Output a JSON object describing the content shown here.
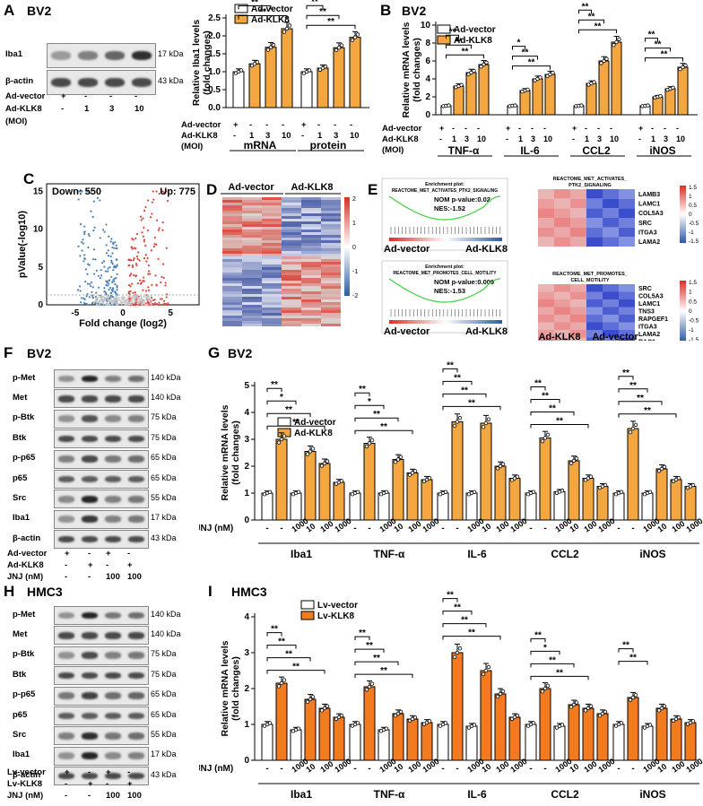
{
  "panels": {
    "A": "A",
    "B": "B",
    "C": "C",
    "D": "D",
    "E": "E",
    "F": "F",
    "G": "G",
    "H": "H",
    "I": "I"
  },
  "cell_lines": {
    "bv2": "BV2",
    "hmc3": "HMC3"
  },
  "panel_a": {
    "blots": [
      {
        "label": "Iba1",
        "kda": "17 kDa"
      },
      {
        "label": "β-actin",
        "kda": "43 kDa"
      }
    ],
    "rows": [
      {
        "label": "Ad-vector",
        "vals": [
          "+",
          "-",
          "-",
          "-"
        ]
      },
      {
        "label": "Ad-KLK8",
        "vals": [
          "-",
          "1",
          "3",
          "10"
        ]
      },
      {
        "label": "(MOI)",
        "vals": [
          "",
          "",
          "",
          ""
        ]
      }
    ]
  },
  "panel_b": {
    "rows": [
      {
        "label": "Ad-vector",
        "vals": [
          "+",
          "-",
          "-",
          "-"
        ]
      },
      {
        "label": "Ad-KLK8",
        "vals": [
          "-",
          "1",
          "3",
          "10"
        ]
      },
      {
        "label": "(MOI)",
        "vals": [
          "",
          "",
          "",
          ""
        ]
      }
    ]
  },
  "panel_c": {
    "down": "Down: 550",
    "up": "Up: 775"
  },
  "panel_d": {
    "groups": [
      "Ad-vector",
      "Ad-KLK8"
    ],
    "scale": [
      "2",
      "1",
      "0",
      "-1",
      "-2"
    ]
  },
  "panel_e": {
    "gsea": [
      {
        "title": "Enrichment plot:",
        "sub": "REACTOME_MET_ACTIVATES_PTK2_SIGNALING",
        "p": "NOM p-value:0.02",
        "nes": "NES:-1.52"
      },
      {
        "title": "Enrichment plot:",
        "sub": "REACTOME_MET_PROMOTES_CELL_MOTILITY",
        "p": "NOM p-value:0.009",
        "nes": "NES:-1.53"
      }
    ],
    "gsea_axis": [
      "Ad-vector",
      "Ad-KLK8"
    ],
    "heat1_title": [
      "REACTOME_MET_ACTIVATES_",
      "PTK2_SIGNALING"
    ],
    "heat1_genes": [
      "LAMB3",
      "LAMC1",
      "COL5A3",
      "SRC",
      "ITGA3",
      "LAMA2"
    ],
    "heat2_title": [
      "REACTOME_MET_PROMOTES_",
      "CELL_MOTILITY"
    ],
    "heat2_genes": [
      "SRC",
      "COL5A3",
      "LAMC1",
      "TNS3",
      "RAPGEF1",
      "ITGA3",
      "LAMA2",
      "RAC1"
    ],
    "heat_groups": [
      "Ad-KLK8",
      "Ad-vector"
    ],
    "scale": [
      "1.5",
      "1",
      "0.5",
      "0",
      "-0.5",
      "-1",
      "-1.5"
    ]
  },
  "panel_f": {
    "blots": [
      {
        "label": "p-Met",
        "kda": "140 kDa"
      },
      {
        "label": "Met",
        "kda": "140 kDa"
      },
      {
        "label": "p-Btk",
        "kda": "75 kDa"
      },
      {
        "label": "Btk",
        "kda": "75 kDa"
      },
      {
        "label": "p-p65",
        "kda": "65 kDa"
      },
      {
        "label": "p65",
        "kda": "65 kDa"
      },
      {
        "label": "Src",
        "kda": "55 kDa"
      },
      {
        "label": "Iba1",
        "kda": "17 kDa"
      },
      {
        "label": "β-actin",
        "kda": "43 kDa"
      }
    ],
    "rows": [
      {
        "label": "Ad-vector",
        "vals": [
          "+",
          "-",
          "+",
          "-"
        ]
      },
      {
        "label": "Ad-KLK8",
        "vals": [
          "-",
          "+",
          "-",
          "+"
        ]
      },
      {
        "label": "JNJ (nM)",
        "vals": [
          "-",
          "-",
          "100",
          "100"
        ]
      }
    ]
  },
  "panel_h": {
    "blots": [
      {
        "label": "p-Met",
        "kda": "140 kDa"
      },
      {
        "label": "Met",
        "kda": "140 kDa"
      },
      {
        "label": "p-Btk",
        "kda": "75 kDa"
      },
      {
        "label": "Btk",
        "kda": "75 kDa"
      },
      {
        "label": "p-p65",
        "kda": "65 kDa"
      },
      {
        "label": "p65",
        "kda": "65 kDa"
      },
      {
        "label": "Src",
        "kda": "55 kDa"
      },
      {
        "label": "Iba1",
        "kda": "17 kDa"
      },
      {
        "label": "β-actin",
        "kda": "43 kDa"
      }
    ],
    "rows": [
      {
        "label": "Lv-vector",
        "vals": [
          "+",
          "-",
          "+",
          "-"
        ]
      },
      {
        "label": "Lv-KLK8",
        "vals": [
          "-",
          "+",
          "-",
          "+"
        ]
      },
      {
        "label": "JNJ (nM)",
        "vals": [
          "-",
          "-",
          "100",
          "100"
        ]
      }
    ]
  },
  "chart_data": [
    {
      "id": "A-bar",
      "type": "bar",
      "ylabel": "Relative Iba1 levels (fold changes)",
      "ylim": [
        0,
        2.5
      ],
      "yticks": [
        "0.0",
        "0.5",
        "1.0",
        "1.5",
        "2.0",
        "2.5"
      ],
      "legend": [
        "Ad-vector",
        "Ad-KLK8"
      ],
      "groups": [
        "mRNA",
        "protein"
      ],
      "series": [
        {
          "name": "mRNA",
          "values": [
            1.0,
            1.22,
            1.68,
            2.2
          ]
        },
        {
          "name": "protein",
          "values": [
            1.0,
            1.1,
            1.67,
            1.96
          ]
        }
      ],
      "sig": [
        "*",
        "**",
        "**",
        "**",
        "**",
        "**"
      ]
    },
    {
      "id": "B-bar",
      "type": "bar",
      "ylabel": "Relative mRNA levels (fold changes)",
      "ylim": [
        0,
        10
      ],
      "yticks": [
        "0",
        "2",
        "4",
        "6",
        "8",
        "10"
      ],
      "legend": [
        "Ad-vector",
        "Ad-KLK8"
      ],
      "groups": [
        "TNF-α",
        "IL-6",
        "CCL2",
        "iNOS"
      ],
      "series": [
        {
          "name": "TNF-α",
          "values": [
            1.0,
            3.2,
            4.7,
            5.6
          ]
        },
        {
          "name": "IL-6",
          "values": [
            1.0,
            2.7,
            4.0,
            4.5
          ]
        },
        {
          "name": "CCL2",
          "values": [
            1.0,
            3.5,
            6.0,
            8.1
          ]
        },
        {
          "name": "iNOS",
          "values": [
            1.0,
            2.0,
            2.9,
            5.3
          ]
        }
      ],
      "sig": [
        "**",
        "**",
        "**",
        "*",
        "**",
        "**",
        "**",
        "**",
        "**",
        "**",
        "**",
        "**"
      ]
    },
    {
      "id": "C-volcano",
      "type": "scatter",
      "xlabel": "Fold change (log2)",
      "ylabel": "pValue(-log10)",
      "xticks": [
        "-5",
        "0",
        "5"
      ],
      "yticks": [
        "0",
        "5",
        "10",
        "15"
      ],
      "xlim": [
        -8,
        8
      ],
      "ylim": [
        0,
        16
      ]
    },
    {
      "id": "G-bar",
      "type": "bar",
      "ylabel": "Relative mRNA levels (fold changes)",
      "ylim": [
        0,
        5
      ],
      "yticks": [
        "0",
        "1",
        "2",
        "3",
        "4",
        "5"
      ],
      "legend": [
        "Ad-vector",
        "Ad-KLK8"
      ],
      "groups": [
        "Iba1",
        "TNF-α",
        "IL-6",
        "CCL2",
        "iNOS"
      ],
      "xcond_label": "JNJ (nM)",
      "xcond": [
        "-",
        "-",
        "1000",
        "10",
        "100",
        "1000"
      ],
      "series": [
        {
          "name": "Iba1",
          "values": [
            1.0,
            3.0,
            1.0,
            2.55,
            2.1,
            1.4
          ]
        },
        {
          "name": "TNF-α",
          "values": [
            1.0,
            2.85,
            1.0,
            2.25,
            1.75,
            1.5
          ]
        },
        {
          "name": "IL-6",
          "values": [
            1.0,
            3.65,
            1.0,
            3.6,
            2.0,
            1.55
          ]
        },
        {
          "name": "CCL2",
          "values": [
            1.0,
            3.05,
            1.05,
            2.2,
            1.55,
            1.25
          ]
        },
        {
          "name": "iNOS",
          "values": [
            1.0,
            3.4,
            1.0,
            1.9,
            1.5,
            1.25
          ]
        }
      ],
      "sig": [
        "**",
        "*",
        "**",
        "**",
        "**",
        "*",
        "**",
        "**",
        "**",
        "**",
        "**",
        "**",
        "**",
        "**",
        "**",
        "**",
        "**",
        "**",
        "**",
        "**"
      ]
    },
    {
      "id": "I-bar",
      "type": "bar",
      "ylabel": "Relative mRNA levels (fold changes)",
      "ylim": [
        0,
        4
      ],
      "yticks": [
        "0",
        "1",
        "2",
        "3",
        "4"
      ],
      "legend": [
        "Lv-vector",
        "Lv-KLK8"
      ],
      "groups": [
        "Iba1",
        "TNF-α",
        "IL-6",
        "CCL2",
        "iNOS"
      ],
      "xcond_label": "JNJ (nM)",
      "xcond": [
        "-",
        "-",
        "1000",
        "10",
        "100",
        "1000"
      ],
      "series": [
        {
          "name": "Iba1",
          "values": [
            1.0,
            2.15,
            0.85,
            1.7,
            1.45,
            1.2
          ]
        },
        {
          "name": "TNF-α",
          "values": [
            1.0,
            2.05,
            0.85,
            1.3,
            1.15,
            1.05
          ]
        },
        {
          "name": "IL-6",
          "values": [
            1.0,
            3.0,
            0.95,
            2.5,
            1.85,
            1.2
          ]
        },
        {
          "name": "CCL2",
          "values": [
            1.0,
            2.0,
            0.95,
            1.55,
            1.45,
            1.3
          ]
        },
        {
          "name": "iNOS",
          "values": [
            1.0,
            1.75,
            0.95,
            1.45,
            1.15,
            1.05
          ]
        }
      ],
      "sig": [
        "**",
        "**",
        "**",
        "**",
        "**",
        "**",
        "**",
        "**",
        "**",
        "**",
        "**",
        "**",
        "**",
        "*",
        "**",
        "**",
        "**",
        "**"
      ]
    }
  ]
}
